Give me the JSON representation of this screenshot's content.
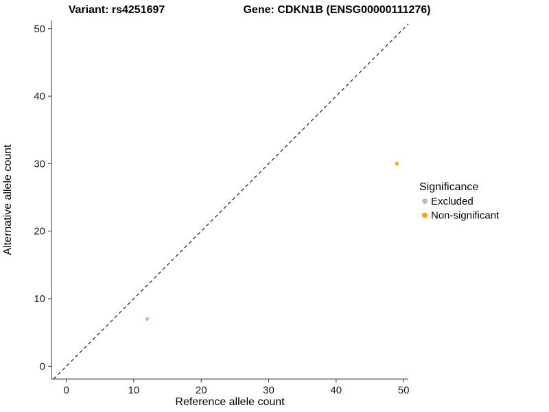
{
  "chart_data": {
    "type": "scatter",
    "title_left": "Variant: rs4251697",
    "title_right": "Gene: CDKN1B (ENSG00000111276)",
    "xlabel": "Reference allele count",
    "ylabel": "Alternative allele count",
    "xlim": [
      -2.2,
      50.7
    ],
    "ylim": [
      -1.9,
      51.2
    ],
    "xticks": [
      0,
      10,
      20,
      30,
      40,
      50
    ],
    "yticks": [
      0,
      10,
      20,
      30,
      40,
      50
    ],
    "grid": false,
    "background": "#ffffff",
    "legend_position": "right",
    "legend_title": "Significance",
    "identity_line": {
      "style": "dashed",
      "slope": 1,
      "intercept": 0,
      "color": "#000000"
    },
    "series": [
      {
        "name": "Excluded",
        "color": "#BDBDBD",
        "points": [
          {
            "x": 12,
            "y": 7
          }
        ]
      },
      {
        "name": "Non-significant",
        "color": "#FFA500",
        "points": [
          {
            "x": 49,
            "y": 30
          }
        ]
      }
    ]
  }
}
